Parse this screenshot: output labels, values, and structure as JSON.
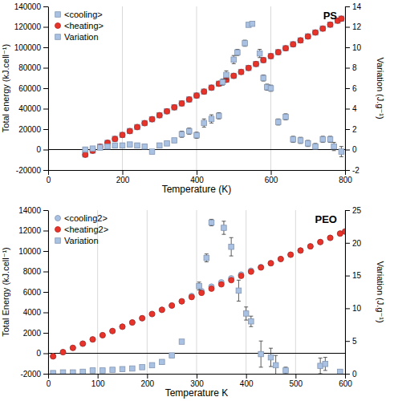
{
  "chart_data": [
    {
      "type": "scatter",
      "title": "PS",
      "x_label": "Temperature (K)",
      "y_label": "Total energy (kJ.cell⁻¹)",
      "y2_label": "Variation (J.g⁻¹)",
      "xlim": [
        0,
        800
      ],
      "xticks": [
        0,
        200,
        400,
        600,
        800
      ],
      "ylim": [
        -20000,
        140000
      ],
      "yticks": [
        -20000,
        0,
        20000,
        40000,
        60000,
        80000,
        100000,
        120000,
        140000
      ],
      "y2lim": [
        -2,
        14
      ],
      "y2ticks": [
        -2,
        0,
        2,
        4,
        6,
        8,
        10,
        12,
        14
      ],
      "grid": true,
      "legend": "upper left",
      "series": [
        {
          "name": "<cooling>",
          "color": "#a9c1e3",
          "marker": "square",
          "x": [
            100,
            120,
            140,
            160,
            180,
            200,
            220,
            240,
            260,
            280,
            300,
            320,
            340,
            360,
            380,
            400,
            420,
            440,
            460,
            480,
            500,
            520,
            540,
            560,
            580,
            600,
            620,
            640,
            660,
            680,
            700,
            720,
            740,
            760,
            780,
            790
          ],
          "values": [
            -4800,
            -1000,
            2800,
            6600,
            10500,
            14300,
            18100,
            22000,
            25900,
            29700,
            33600,
            37500,
            41300,
            45200,
            49000,
            52900,
            56700,
            60600,
            64400,
            68300,
            72100,
            76000,
            79800,
            83700,
            87500,
            91400,
            95300,
            99100,
            103000,
            106800,
            110700,
            114500,
            118400,
            122200,
            126100,
            128000
          ]
        },
        {
          "name": "<heating>",
          "color": "#e8332a",
          "marker": "circle",
          "x": [
            100,
            120,
            140,
            160,
            180,
            200,
            220,
            240,
            260,
            280,
            300,
            320,
            340,
            360,
            380,
            400,
            420,
            440,
            460,
            480,
            500,
            520,
            540,
            560,
            580,
            600,
            620,
            640,
            660,
            680,
            700,
            720,
            740,
            760,
            780,
            790
          ],
          "values": [
            -5000,
            -1100,
            2700,
            6600,
            10400,
            14300,
            18100,
            22000,
            25800,
            29700,
            33600,
            37400,
            41300,
            45100,
            49000,
            52800,
            56700,
            60500,
            64400,
            68200,
            72100,
            75900,
            79800,
            83700,
            87500,
            91400,
            95200,
            99100,
            102900,
            106800,
            110600,
            114500,
            118300,
            122200,
            126000,
            128000
          ]
        },
        {
          "name": "Variation",
          "color": "#a9c1e3",
          "marker": "square",
          "axis": "y2",
          "x": [
            100,
            120,
            140,
            160,
            180,
            200,
            220,
            240,
            260,
            280,
            300,
            320,
            340,
            360,
            380,
            400,
            420,
            440,
            460,
            470,
            480,
            500,
            510,
            530,
            540,
            550,
            570,
            580,
            590,
            600,
            620,
            640,
            660,
            680,
            700,
            720,
            740,
            760,
            770,
            790
          ],
          "values": [
            0.0,
            0.1,
            0.2,
            0.3,
            0.4,
            0.4,
            0.5,
            0.4,
            0.3,
            -0.2,
            0.4,
            0.6,
            0.9,
            1.5,
            1.8,
            1.4,
            2.6,
            3.0,
            3.3,
            6.6,
            7.3,
            8.8,
            9.5,
            10.4,
            12.2,
            12.3,
            9.4,
            7.0,
            6.1,
            6.0,
            2.7,
            3.2,
            1.0,
            0.9,
            0.6,
            0.3,
            1.0,
            1.0,
            0.3,
            -0.2
          ],
          "errors": [
            0.2,
            0.2,
            0.2,
            0.2,
            0.2,
            0.2,
            0.2,
            0.2,
            0.2,
            0.2,
            0.2,
            0.2,
            0.2,
            0.3,
            0.3,
            0.3,
            0.4,
            0.4,
            0.3,
            0.3,
            0.4,
            0.4,
            0.3,
            0.3,
            0.2,
            0.2,
            0.4,
            0.3,
            0.3,
            0.3,
            0.3,
            0.3,
            0.3,
            0.3,
            0.3,
            0.3,
            0.3,
            0.3,
            0.4,
            0.5
          ]
        }
      ]
    },
    {
      "type": "scatter",
      "title": "PEO",
      "x_label": "Temperature K",
      "y_label": "Total Energy (kJ.cell⁻¹)",
      "y2_label": "Variation (J.g⁻¹)",
      "xlim": [
        0,
        600
      ],
      "xticks": [
        0,
        100,
        200,
        300,
        400,
        500,
        600
      ],
      "ylim": [
        -2000,
        14000
      ],
      "yticks": [
        -2000,
        0,
        2000,
        4000,
        6000,
        8000,
        10000,
        12000,
        14000
      ],
      "y2lim": [
        0,
        25
      ],
      "y2ticks": [
        0,
        5,
        10,
        15,
        20,
        25
      ],
      "grid": true,
      "legend": "upper left",
      "series": [
        {
          "name": "<cooling2>",
          "color": "#a9c1e3",
          "marker": "circle",
          "x": [
            10,
            30,
            50,
            70,
            90,
            110,
            130,
            150,
            170,
            190,
            210,
            230,
            250,
            270,
            290,
            310,
            330,
            350,
            370,
            390,
            410,
            430,
            450,
            470,
            490,
            510,
            530,
            550,
            570,
            590,
            600
          ],
          "values": [
            -300,
            110,
            530,
            940,
            1360,
            1770,
            2180,
            2600,
            3010,
            3430,
            3840,
            4250,
            4670,
            5080,
            5600,
            6080,
            6520,
            6940,
            7330,
            7700,
            8080,
            8430,
            8810,
            9220,
            9640,
            10050,
            10460,
            10880,
            11290,
            11710,
            11910
          ]
        },
        {
          "name": "<heating2>",
          "color": "#e8332a",
          "marker": "circle",
          "x": [
            10,
            30,
            50,
            70,
            90,
            110,
            130,
            150,
            170,
            190,
            210,
            230,
            250,
            270,
            290,
            310,
            330,
            350,
            370,
            390,
            410,
            430,
            450,
            470,
            490,
            510,
            530,
            550,
            570,
            590,
            600
          ],
          "values": [
            -300,
            110,
            530,
            940,
            1360,
            1770,
            2180,
            2600,
            3010,
            3430,
            3840,
            4250,
            4670,
            5080,
            5500,
            5910,
            6320,
            6740,
            7150,
            7570,
            7980,
            8390,
            8810,
            9220,
            9640,
            10050,
            10460,
            10880,
            11290,
            11710,
            11910
          ]
        },
        {
          "name": "Variation",
          "color": "#a9c1e3",
          "marker": "square",
          "axis": "y2",
          "x": [
            10,
            30,
            50,
            70,
            90,
            110,
            130,
            150,
            170,
            190,
            210,
            230,
            250,
            270,
            305,
            320,
            330,
            355,
            370,
            385,
            400,
            410,
            430,
            450,
            460,
            480,
            550,
            560,
            590
          ],
          "values": [
            0.1,
            0.2,
            0.2,
            0.3,
            0.5,
            0.5,
            0.6,
            0.7,
            0.8,
            1.0,
            1.3,
            1.8,
            2.8,
            4.9,
            13.4,
            17.7,
            23.1,
            22.3,
            19.4,
            12.7,
            9.2,
            8.0,
            3.0,
            2.5,
            1.3,
            0.5,
            1.2,
            1.5,
            0.3
          ],
          "errors": [
            0.2,
            0.2,
            0.2,
            0.2,
            0.2,
            0.2,
            0.2,
            0.2,
            0.2,
            0.2,
            0.2,
            0.3,
            0.3,
            0.3,
            0.6,
            0.6,
            0.5,
            1.0,
            1.4,
            1.6,
            1.0,
            0.8,
            2.0,
            1.4,
            1.5,
            0.5,
            1.2,
            1.0,
            0.3
          ]
        }
      ]
    }
  ]
}
